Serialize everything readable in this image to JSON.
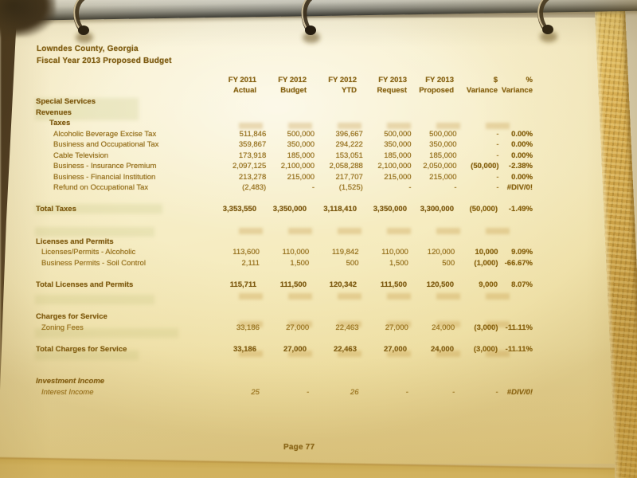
{
  "document": {
    "title_line1": "Lowndes County, Georgia",
    "title_line2": "Fiscal Year 2013 Proposed Budget",
    "page_footer": "Page 77",
    "table": {
      "column_headers": [
        {
          "line1": "FY 2011",
          "line2": "Actual"
        },
        {
          "line1": "FY 2012",
          "line2": "Budget"
        },
        {
          "line1": "FY 2012",
          "line2": "YTD"
        },
        {
          "line1": "FY 2013",
          "line2": "Request"
        },
        {
          "line1": "FY 2013",
          "line2": "Proposed"
        },
        {
          "line1": "$",
          "line2": "Variance"
        },
        {
          "line1": "%",
          "line2": "Variance"
        }
      ],
      "rows": [
        {
          "label": "Special Services",
          "indent": 0,
          "bold": true,
          "values": [
            "",
            "",
            "",
            "",
            "",
            "",
            ""
          ]
        },
        {
          "label": "Revenues",
          "indent": 0,
          "bold": true,
          "values": [
            "",
            "",
            "",
            "",
            "",
            "",
            ""
          ]
        },
        {
          "label": "Taxes",
          "indent": 2,
          "bold": true,
          "values": [
            "",
            "",
            "",
            "",
            "",
            "",
            ""
          ]
        },
        {
          "label": "Alcoholic Beverage Excise Tax",
          "indent": 3,
          "values": [
            "511,846",
            "500,000",
            "396,667",
            "500,000",
            "500,000",
            "-",
            "0.00%"
          ]
        },
        {
          "label": "Business and Occupational Tax",
          "indent": 3,
          "values": [
            "359,867",
            "350,000",
            "294,222",
            "350,000",
            "350,000",
            "-",
            "0.00%"
          ]
        },
        {
          "label": "Cable Television",
          "indent": 3,
          "values": [
            "173,918",
            "185,000",
            "153,051",
            "185,000",
            "185,000",
            "-",
            "0.00%"
          ]
        },
        {
          "label": "Business - Insurance Premium",
          "indent": 3,
          "values": [
            "2,097,125",
            "2,100,000",
            "2,058,288",
            "2,100,000",
            "2,050,000",
            "(50,000)",
            "-2.38%"
          ]
        },
        {
          "label": "Business - Financial Institution",
          "indent": 3,
          "values": [
            "213,278",
            "215,000",
            "217,707",
            "215,000",
            "215,000",
            "-",
            "0.00%"
          ]
        },
        {
          "label": "Refund on Occupational Tax",
          "indent": 3,
          "values": [
            "(2,483)",
            "-",
            "(1,525)",
            "-",
            "-",
            "-",
            "#DIV/0!"
          ]
        },
        {
          "spacer": true
        },
        {
          "label": "Total Taxes",
          "indent": 0,
          "bold": true,
          "values": [
            "3,353,550",
            "3,350,000",
            "3,118,410",
            "3,350,000",
            "3,300,000",
            "(50,000)",
            "-1.49%"
          ]
        },
        {
          "spacer": true
        },
        {
          "spacer": true
        },
        {
          "label": "Licenses and Permits",
          "indent": 0,
          "bold": true,
          "values": [
            "",
            "",
            "",
            "",
            "",
            "",
            ""
          ]
        },
        {
          "label": "Licenses/Permits - Alcoholic",
          "indent": 1,
          "values": [
            "113,600",
            "110,000",
            "119,842",
            "110,000",
            "120,000",
            "10,000",
            "9.09%"
          ]
        },
        {
          "label": "Business Permits - Soil Control",
          "indent": 1,
          "values": [
            "2,111",
            "1,500",
            "500",
            "1,500",
            "500",
            "(1,000)",
            "-66.67%"
          ]
        },
        {
          "spacer": true
        },
        {
          "label": "Total Licenses and Permits",
          "indent": 0,
          "bold": true,
          "values": [
            "115,711",
            "111,500",
            "120,342",
            "111,500",
            "120,500",
            "9,000",
            "8.07%"
          ]
        },
        {
          "spacer": true
        },
        {
          "spacer": true
        },
        {
          "label": "Charges for Service",
          "indent": 0,
          "bold": true,
          "values": [
            "",
            "",
            "",
            "",
            "",
            "",
            ""
          ]
        },
        {
          "label": "Zoning Fees",
          "indent": 1,
          "values": [
            "33,186",
            "27,000",
            "22,463",
            "27,000",
            "24,000",
            "(3,000)",
            "-11.11%"
          ]
        },
        {
          "spacer": true
        },
        {
          "label": "Total Charges for Service",
          "indent": 0,
          "bold": true,
          "values": [
            "33,186",
            "27,000",
            "22,463",
            "27,000",
            "24,000",
            "(3,000)",
            "-11.11%"
          ]
        },
        {
          "spacer": true
        },
        {
          "spacer": true
        },
        {
          "label": "Investment Income",
          "indent": 0,
          "bold": true,
          "italic": true,
          "values": [
            "",
            "",
            "",
            "",
            "",
            "",
            ""
          ]
        },
        {
          "label": "Interest Income",
          "indent": 1,
          "italic": true,
          "values": [
            "25",
            "-",
            "26",
            "-",
            "-",
            "-",
            "#DIV/0!"
          ]
        }
      ]
    },
    "colors": {
      "ink": "#8a6a1e",
      "paper": "#f6edc4",
      "binder_edge_gold": "#c99e45"
    }
  }
}
